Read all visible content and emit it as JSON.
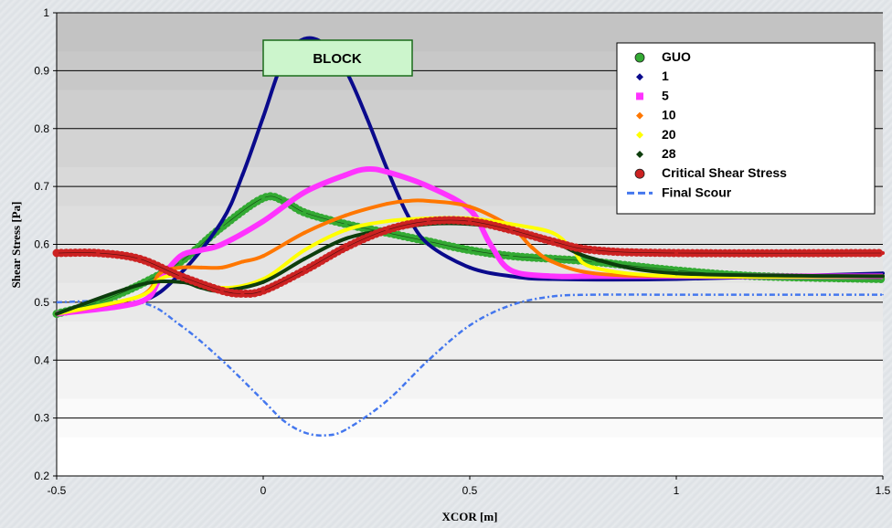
{
  "chart_data": {
    "type": "line",
    "title": "",
    "xlabel": "XCOR [m]",
    "ylabel": "Shear Stress [Pa]",
    "xlim": [
      -0.5,
      1.5
    ],
    "ylim": [
      0.2,
      1.0
    ],
    "xticks": [
      -0.5,
      0,
      0.5,
      1,
      1.5
    ],
    "xtick_labels": [
      "-0.5",
      "0",
      "0.5",
      "1",
      "1.5"
    ],
    "yticks": [
      0.2,
      0.3,
      0.4,
      0.5,
      0.6,
      0.7,
      0.8,
      0.9,
      1.0
    ],
    "ytick_labels": [
      "0.2",
      "0.3",
      "0.4",
      "0.5",
      "0.6",
      "0.7",
      "0.8",
      "0.9",
      "1"
    ],
    "grid": "horizontal",
    "legend_position": "top-right",
    "annotations": [
      {
        "text": "BLOCK",
        "x": 0.18,
        "y": 0.93,
        "color": "#ccf5cc"
      }
    ],
    "series": [
      {
        "name": "GUO",
        "marker": "circle",
        "color": "#33aa33",
        "x": [
          -0.5,
          -0.4,
          -0.3,
          -0.2,
          -0.1,
          0,
          0.05,
          0.1,
          0.2,
          0.3,
          0.4,
          0.5,
          0.6,
          0.7,
          0.8,
          1.0,
          1.2,
          1.5
        ],
        "y": [
          0.48,
          0.5,
          0.53,
          0.57,
          0.63,
          0.68,
          0.675,
          0.655,
          0.635,
          0.62,
          0.605,
          0.59,
          0.58,
          0.575,
          0.57,
          0.555,
          0.545,
          0.54
        ]
      },
      {
        "name": "1",
        "marker": "diamond",
        "color": "#0a0a8c",
        "x": [
          -0.5,
          -0.3,
          -0.2,
          -0.1,
          -0.05,
          0,
          0.05,
          0.1,
          0.15,
          0.2,
          0.25,
          0.3,
          0.35,
          0.4,
          0.5,
          0.6,
          0.7,
          1.0,
          1.5
        ],
        "y": [
          0.48,
          0.5,
          0.55,
          0.64,
          0.72,
          0.82,
          0.92,
          0.955,
          0.945,
          0.9,
          0.82,
          0.73,
          0.65,
          0.6,
          0.56,
          0.545,
          0.54,
          0.54,
          0.55
        ]
      },
      {
        "name": "5",
        "marker": "square",
        "color": "#ff33ff",
        "x": [
          -0.5,
          -0.3,
          -0.25,
          -0.2,
          -0.15,
          -0.1,
          0,
          0.1,
          0.2,
          0.25,
          0.3,
          0.4,
          0.5,
          0.55,
          0.6,
          0.7,
          0.8,
          1.0,
          1.5
        ],
        "y": [
          0.48,
          0.5,
          0.54,
          0.58,
          0.59,
          0.6,
          0.64,
          0.69,
          0.72,
          0.73,
          0.725,
          0.7,
          0.66,
          0.6,
          0.555,
          0.545,
          0.545,
          0.545,
          0.545
        ]
      },
      {
        "name": "10",
        "marker": "diamond",
        "color": "#ff7700",
        "x": [
          -0.5,
          -0.3,
          -0.25,
          -0.2,
          -0.15,
          -0.1,
          -0.05,
          0,
          0.1,
          0.2,
          0.3,
          0.35,
          0.4,
          0.5,
          0.6,
          0.65,
          0.7,
          0.8,
          1.0,
          1.5
        ],
        "y": [
          0.48,
          0.51,
          0.55,
          0.56,
          0.56,
          0.56,
          0.57,
          0.58,
          0.62,
          0.65,
          0.67,
          0.675,
          0.675,
          0.665,
          0.63,
          0.595,
          0.57,
          0.55,
          0.545,
          0.545
        ]
      },
      {
        "name": "20",
        "marker": "diamond",
        "color": "#ffff00",
        "x": [
          -0.5,
          -0.3,
          -0.25,
          -0.2,
          -0.1,
          0,
          0.1,
          0.2,
          0.3,
          0.4,
          0.5,
          0.6,
          0.7,
          0.75,
          0.8,
          1.0,
          1.5
        ],
        "y": [
          0.48,
          0.51,
          0.54,
          0.545,
          0.525,
          0.54,
          0.59,
          0.625,
          0.64,
          0.645,
          0.645,
          0.635,
          0.62,
          0.59,
          0.56,
          0.545,
          0.545
        ]
      },
      {
        "name": "28",
        "marker": "diamond",
        "color": "#0d3d0d",
        "x": [
          -0.5,
          -0.3,
          -0.2,
          -0.15,
          -0.1,
          0,
          0.1,
          0.2,
          0.3,
          0.4,
          0.5,
          0.6,
          0.7,
          0.8,
          1.0,
          1.5
        ],
        "y": [
          0.48,
          0.53,
          0.535,
          0.525,
          0.52,
          0.535,
          0.575,
          0.61,
          0.625,
          0.635,
          0.635,
          0.625,
          0.605,
          0.575,
          0.55,
          0.545
        ]
      },
      {
        "name": "Critical Shear Stress",
        "marker": "circle",
        "color": "#cc2222",
        "x": [
          -0.5,
          -0.4,
          -0.3,
          -0.2,
          -0.1,
          -0.05,
          0,
          0.1,
          0.2,
          0.3,
          0.4,
          0.5,
          0.6,
          0.7,
          0.8,
          1.0,
          1.5
        ],
        "y": [
          0.585,
          0.585,
          0.575,
          0.545,
          0.52,
          0.515,
          0.52,
          0.555,
          0.595,
          0.625,
          0.64,
          0.64,
          0.625,
          0.605,
          0.59,
          0.585,
          0.585
        ]
      },
      {
        "name": "Final Scour",
        "marker": "none",
        "style": "dash-dot",
        "color": "#4477ee",
        "x": [
          -0.5,
          -0.3,
          -0.2,
          -0.1,
          0,
          0.05,
          0.1,
          0.15,
          0.2,
          0.3,
          0.4,
          0.5,
          0.6,
          0.7,
          0.8,
          1.0,
          1.5
        ],
        "y": [
          0.5,
          0.5,
          0.46,
          0.4,
          0.33,
          0.295,
          0.275,
          0.27,
          0.28,
          0.33,
          0.4,
          0.46,
          0.495,
          0.51,
          0.513,
          0.513,
          0.513
        ]
      }
    ]
  }
}
